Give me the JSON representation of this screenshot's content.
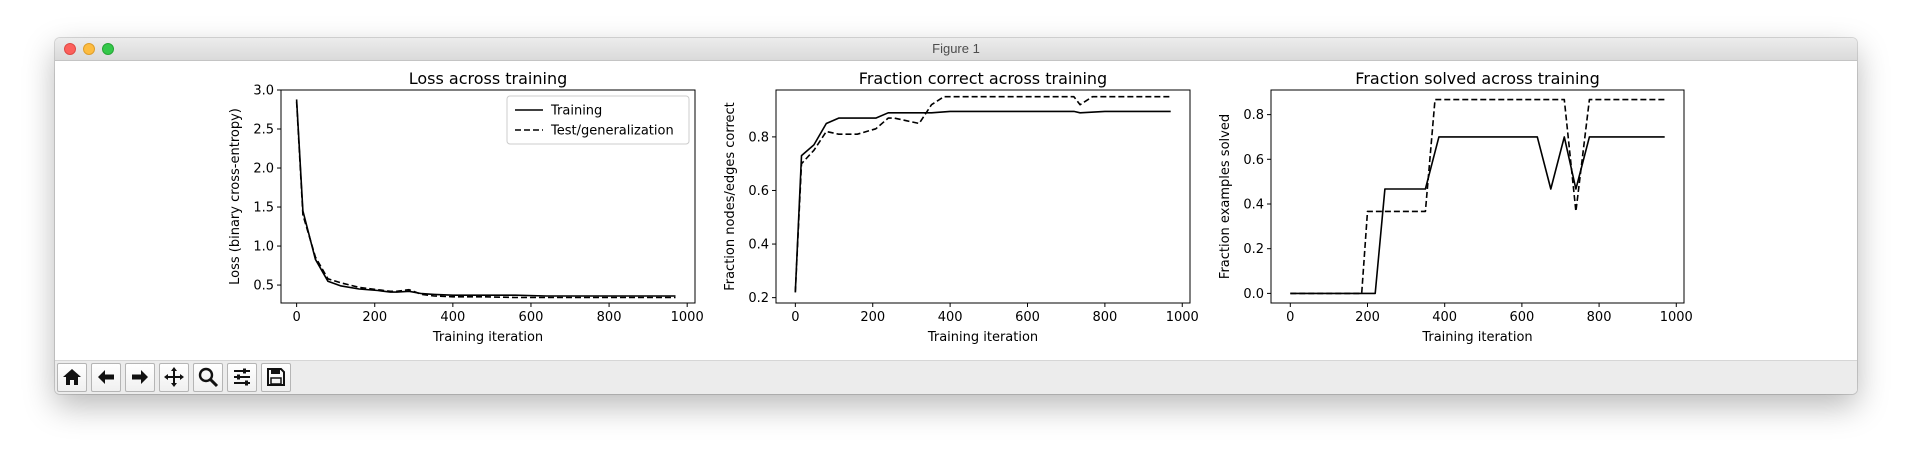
{
  "window": {
    "title": "Figure 1"
  },
  "toolbar": {
    "buttons": [
      {
        "icon": "home-icon",
        "label": "Home"
      },
      {
        "icon": "back-arrow-icon",
        "label": "Back"
      },
      {
        "icon": "forward-arrow-icon",
        "label": "Forward"
      },
      {
        "icon": "pan-icon",
        "label": "Pan"
      },
      {
        "icon": "zoom-icon",
        "label": "Zoom"
      },
      {
        "icon": "configure-subplots-icon",
        "label": "Subplots"
      },
      {
        "icon": "save-icon",
        "label": "Save"
      }
    ]
  },
  "chart_data": [
    {
      "type": "line",
      "title": "Loss across training",
      "xlabel": "Training iteration",
      "ylabel": "Loss (binary cross-entropy)",
      "xlim": [
        -40,
        1020
      ],
      "ylim": [
        0.27,
        3.0
      ],
      "xticks": [
        0,
        200,
        400,
        600,
        800,
        1000
      ],
      "yticks": [
        0.5,
        1.0,
        1.5,
        2.0,
        2.5,
        3.0
      ],
      "ytick_labels": [
        "0.5",
        "1.0",
        "1.5",
        "2.0",
        "2.5",
        "3.0"
      ],
      "legend": "upper-right",
      "series": [
        {
          "name": "Training",
          "style": "solid",
          "x": [
            0,
            16,
            48,
            80,
            112,
            160,
            208,
            240,
            256,
            288,
            320,
            352,
            400,
            480,
            560,
            640,
            720,
            800,
            880,
            970
          ],
          "y": [
            2.88,
            1.45,
            0.83,
            0.55,
            0.49,
            0.45,
            0.43,
            0.41,
            0.41,
            0.42,
            0.39,
            0.38,
            0.37,
            0.37,
            0.37,
            0.36,
            0.36,
            0.36,
            0.36,
            0.36
          ]
        },
        {
          "name": "Test/generalization",
          "style": "dashed",
          "x": [
            0,
            16,
            48,
            80,
            112,
            160,
            208,
            240,
            256,
            288,
            320,
            352,
            400,
            480,
            560,
            640,
            720,
            800,
            880,
            970
          ],
          "y": [
            2.85,
            1.4,
            0.86,
            0.58,
            0.53,
            0.47,
            0.44,
            0.42,
            0.42,
            0.44,
            0.38,
            0.36,
            0.35,
            0.35,
            0.34,
            0.34,
            0.34,
            0.34,
            0.34,
            0.34
          ]
        }
      ]
    },
    {
      "type": "line",
      "title": "Fraction correct across training",
      "xlabel": "Training iteration",
      "ylabel": "Fraction nodes/edges correct",
      "xlim": [
        -50,
        1020
      ],
      "ylim": [
        0.18,
        0.975
      ],
      "xticks": [
        0,
        200,
        400,
        600,
        800,
        1000
      ],
      "yticks": [
        0.2,
        0.4,
        0.6,
        0.8
      ],
      "ytick_labels": [
        "0.2",
        "0.4",
        "0.6",
        "0.8"
      ],
      "series": [
        {
          "name": "Training",
          "style": "solid",
          "x": [
            0,
            16,
            48,
            80,
            112,
            160,
            208,
            240,
            256,
            320,
            352,
            400,
            480,
            560,
            640,
            720,
            736,
            800,
            880,
            970
          ],
          "y": [
            0.22,
            0.73,
            0.77,
            0.85,
            0.87,
            0.87,
            0.87,
            0.89,
            0.89,
            0.89,
            0.89,
            0.895,
            0.895,
            0.895,
            0.895,
            0.895,
            0.89,
            0.895,
            0.895,
            0.895
          ]
        },
        {
          "name": "Test/generalization",
          "style": "dashed",
          "x": [
            0,
            16,
            48,
            80,
            112,
            160,
            208,
            240,
            256,
            288,
            320,
            352,
            384,
            480,
            560,
            640,
            720,
            736,
            768,
            800,
            880,
            970
          ],
          "y": [
            0.22,
            0.7,
            0.75,
            0.82,
            0.81,
            0.81,
            0.83,
            0.87,
            0.87,
            0.86,
            0.85,
            0.92,
            0.95,
            0.95,
            0.95,
            0.95,
            0.95,
            0.92,
            0.95,
            0.95,
            0.95,
            0.95
          ]
        }
      ]
    },
    {
      "type": "line",
      "title": "Fraction solved across training",
      "xlabel": "Training iteration",
      "ylabel": "Fraction examples solved",
      "xlim": [
        -50,
        1020
      ],
      "ylim": [
        -0.043,
        0.91
      ],
      "xticks": [
        0,
        200,
        400,
        600,
        800,
        1000
      ],
      "yticks": [
        0.0,
        0.2,
        0.4,
        0.6,
        0.8
      ],
      "ytick_labels": [
        "0.0",
        "0.2",
        "0.4",
        "0.6",
        "0.8"
      ],
      "series": [
        {
          "name": "Training",
          "style": "solid",
          "x": [
            0,
            220,
            245,
            350,
            385,
            640,
            675,
            710,
            740,
            775,
            970
          ],
          "y": [
            0.0,
            0.0,
            0.467,
            0.467,
            0.7,
            0.7,
            0.467,
            0.7,
            0.467,
            0.7,
            0.7
          ]
        },
        {
          "name": "Test/generalization",
          "style": "dashed",
          "x": [
            0,
            185,
            200,
            350,
            375,
            710,
            740,
            775,
            970
          ],
          "y": [
            0.0,
            0.0,
            0.367,
            0.367,
            0.867,
            0.867,
            0.367,
            0.867,
            0.867
          ]
        }
      ]
    }
  ]
}
